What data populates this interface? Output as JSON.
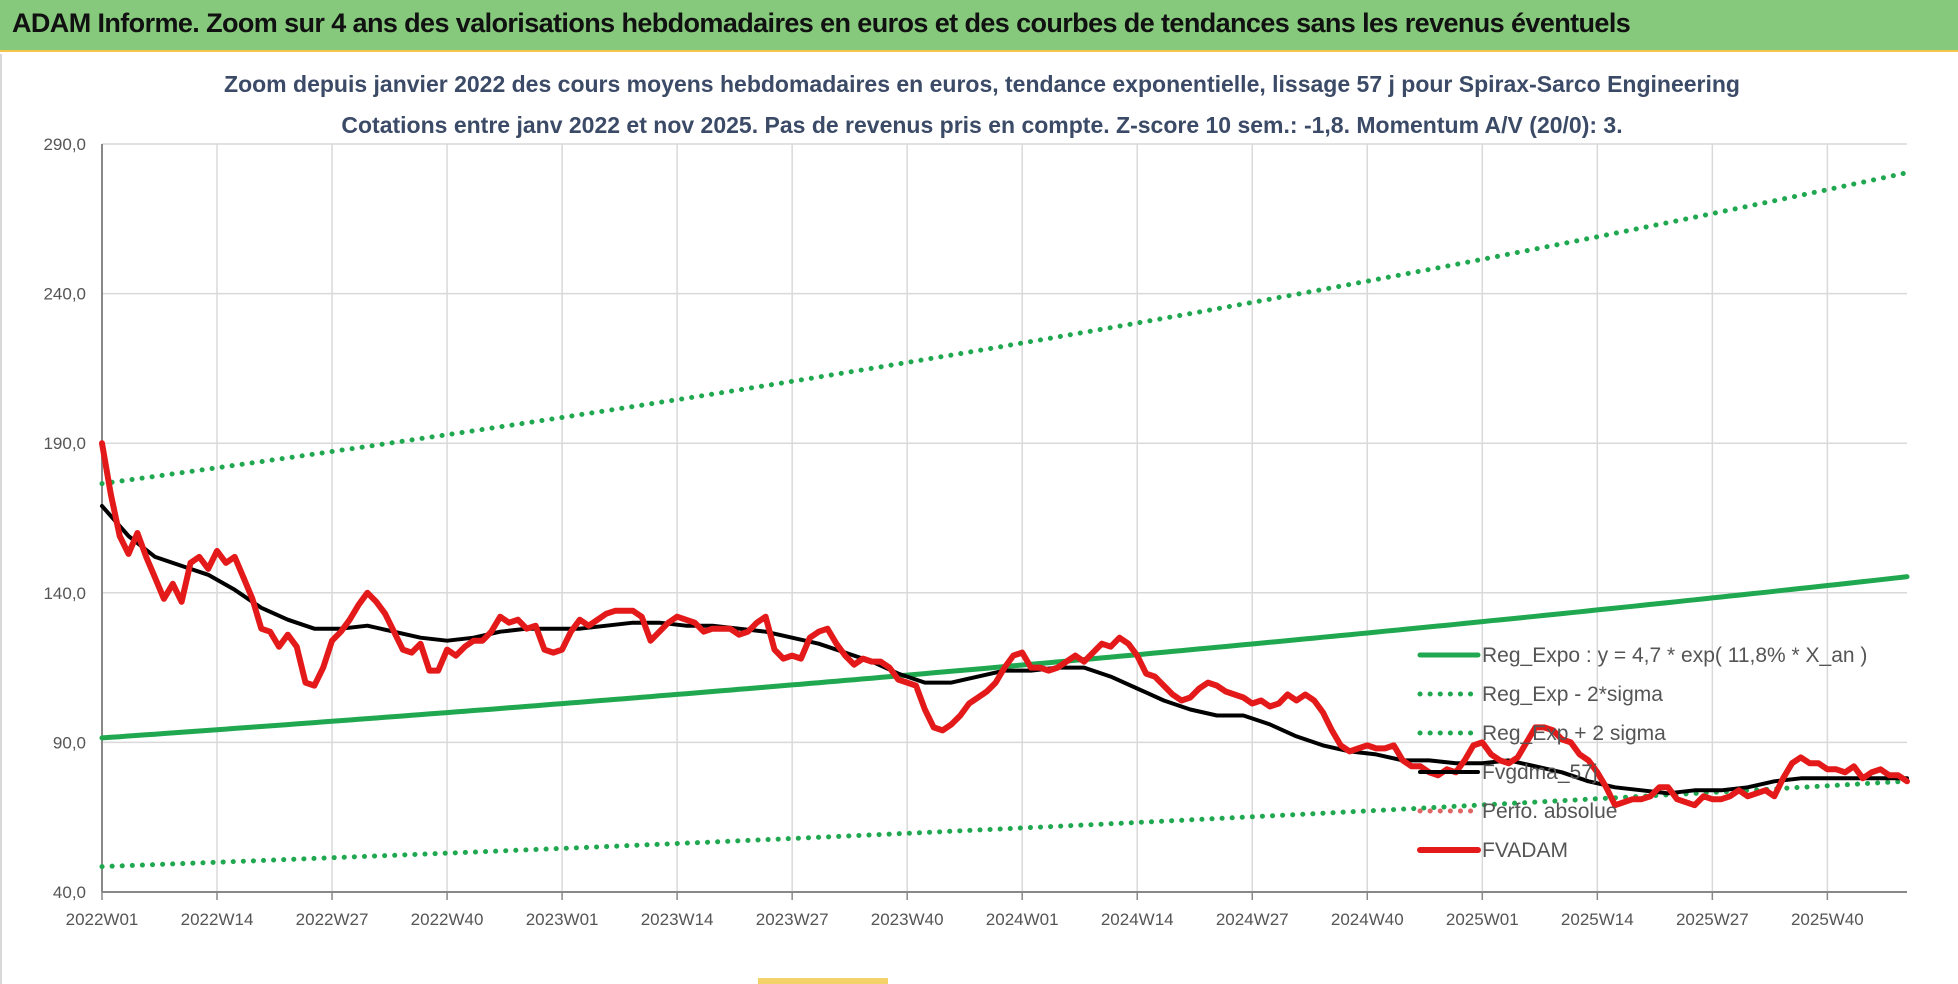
{
  "banner": {
    "title": "ADAM Informe. Zoom sur 4 ans des valorisations hebdomadaires en euros et des courbes de tendances sans les revenus éventuels",
    "color": "#86c97c"
  },
  "chart_data": {
    "type": "line",
    "title": "Zoom depuis janvier 2022 des cours moyens hebdomadaires en euros, tendance exponentielle, lissage 57 j pour Spirax-Sarco Engineering",
    "subtitle": "Cotations entre janv 2022 et nov 2025. Pas de revenus pris en compte. Z-score 10 sem.: -1,8. Momentum A/V (20/0): 3.",
    "xlabel": "",
    "ylabel": "",
    "ylim": [
      40,
      290
    ],
    "xlim": [
      0,
      204
    ],
    "yticks": [
      "40,0",
      "90,0",
      "140,0",
      "190,0",
      "240,0",
      "290,0"
    ],
    "ytick_values": [
      40,
      90,
      140,
      190,
      240,
      290
    ],
    "xticks": [
      "2022W01",
      "2022W14",
      "2022W27",
      "2022W40",
      "2023W01",
      "2023W14",
      "2023W27",
      "2023W40",
      "2024W01",
      "2024W14",
      "2024W27",
      "2024W40",
      "2025W01",
      "2025W14",
      "2025W27",
      "2025W40"
    ],
    "xtick_positions": [
      0,
      13,
      26,
      39,
      52,
      65,
      78,
      91,
      104,
      117,
      130,
      143,
      156,
      169,
      182,
      195
    ],
    "grid": true,
    "legend_position": "bottom-right",
    "series": [
      {
        "name": "Reg_Expo : y = 4,7 * exp( 11,8% *  X_an )",
        "color": "#1fa84f",
        "style": "solid",
        "kind": "exp",
        "start": 91.5,
        "growth_per_year": 0.118
      },
      {
        "name": "Reg_Exp - 2*sigma",
        "color": "#1fa84f",
        "style": "dotted",
        "kind": "exp",
        "start": 48.5,
        "growth_per_year": 0.118
      },
      {
        "name": "Reg_Exp + 2 sigma",
        "color": "#1fa84f",
        "style": "dotted",
        "kind": "exp",
        "start": 176.5,
        "growth_per_year": 0.118
      },
      {
        "name": "Fvgdma_57j",
        "color": "#000000",
        "style": "solid",
        "x": [
          0,
          3,
          6,
          9,
          12,
          15,
          18,
          21,
          24,
          27,
          30,
          33,
          36,
          39,
          42,
          45,
          48,
          51,
          54,
          57,
          60,
          63,
          66,
          69,
          72,
          75,
          78,
          81,
          84,
          87,
          90,
          93,
          96,
          99,
          102,
          105,
          108,
          111,
          114,
          117,
          120,
          123,
          126,
          129,
          132,
          135,
          138,
          141,
          144,
          147,
          150,
          153,
          156,
          159,
          162,
          165,
          168,
          171,
          174,
          177,
          180,
          183,
          186,
          189,
          192,
          195,
          198,
          201,
          204
        ],
        "y": [
          169,
          159,
          152,
          149,
          146,
          141,
          135,
          131,
          128,
          128,
          129,
          127,
          125,
          124,
          125,
          127,
          128,
          128,
          128,
          129,
          130,
          130,
          129,
          129,
          128,
          127,
          125,
          123,
          120,
          117,
          113,
          110,
          110,
          112,
          114,
          114,
          115,
          115,
          112,
          108,
          104,
          101,
          99,
          99,
          96,
          92,
          89,
          87,
          86,
          84,
          84,
          83,
          83,
          84,
          82,
          80,
          77,
          75,
          74,
          73,
          74,
          74,
          75,
          77,
          78,
          78,
          78,
          78,
          78
        ]
      },
      {
        "name": "Perfo. absolue",
        "color": "#e06666",
        "style": "dotted",
        "x": [],
        "y": []
      },
      {
        "name": "FVADAM",
        "color": "#e41a1a",
        "style": "solid",
        "x": [
          0,
          1,
          2,
          3,
          4,
          5,
          6,
          7,
          8,
          9,
          10,
          11,
          12,
          13,
          14,
          15,
          16,
          17,
          18,
          19,
          20,
          21,
          22,
          23,
          24,
          25,
          26,
          27,
          28,
          29,
          30,
          31,
          32,
          33,
          34,
          35,
          36,
          37,
          38,
          39,
          40,
          41,
          42,
          43,
          44,
          45,
          46,
          47,
          48,
          49,
          50,
          51,
          52,
          53,
          54,
          55,
          56,
          57,
          58,
          59,
          60,
          61,
          62,
          63,
          64,
          65,
          66,
          67,
          68,
          69,
          70,
          71,
          72,
          73,
          74,
          75,
          76,
          77,
          78,
          79,
          80,
          81,
          82,
          83,
          84,
          85,
          86,
          87,
          88,
          89,
          90,
          91,
          92,
          93,
          94,
          95,
          96,
          97,
          98,
          99,
          100,
          101,
          102,
          103,
          104,
          105,
          106,
          107,
          108,
          109,
          110,
          111,
          112,
          113,
          114,
          115,
          116,
          117,
          118,
          119,
          120,
          121,
          122,
          123,
          124,
          125,
          126,
          127,
          128,
          129,
          130,
          131,
          132,
          133,
          134,
          135,
          136,
          137,
          138,
          139,
          140,
          141,
          142,
          143,
          144,
          145,
          146,
          147,
          148,
          149,
          150,
          151,
          152,
          153,
          154,
          155,
          156,
          157,
          158,
          159,
          160,
          161,
          162,
          163,
          164,
          165,
          166,
          167,
          168,
          169,
          170,
          171,
          172,
          173,
          174,
          175,
          176,
          177,
          178,
          179,
          180,
          181,
          182,
          183,
          184,
          185,
          186,
          187,
          188,
          189,
          190,
          191,
          192,
          193,
          194,
          195,
          196,
          197,
          198,
          199,
          200,
          201,
          202,
          203,
          204
        ],
        "y": [
          190,
          173,
          159,
          153,
          160,
          152,
          145,
          138,
          143,
          137,
          150,
          152,
          148,
          154,
          150,
          152,
          145,
          138,
          128,
          127,
          122,
          126,
          122,
          110,
          109,
          115,
          124,
          127,
          131,
          136,
          140,
          137,
          133,
          127,
          121,
          120,
          123,
          114,
          114,
          121,
          119,
          122,
          124,
          124,
          127,
          132,
          130,
          131,
          128,
          129,
          121,
          120,
          121,
          127,
          131,
          129,
          131,
          133,
          134,
          134,
          134,
          132,
          124,
          127,
          130,
          132,
          131,
          130,
          127,
          128,
          128,
          128,
          126,
          127,
          130,
          132,
          121,
          118,
          119,
          118,
          125,
          127,
          128,
          123,
          119,
          116,
          118,
          117,
          117,
          115,
          111,
          110,
          109,
          101,
          95,
          94,
          96,
          99,
          103,
          105,
          107,
          110,
          115,
          119,
          120,
          115,
          115,
          114,
          115,
          117,
          119,
          117,
          120,
          123,
          122,
          125,
          123,
          119,
          113,
          112,
          109,
          106,
          104,
          105,
          108,
          110,
          109,
          107,
          106,
          105,
          103,
          104,
          102,
          103,
          106,
          104,
          106,
          104,
          100,
          94,
          89,
          87,
          88,
          89,
          88,
          88,
          89,
          84,
          82,
          82,
          80,
          79,
          81,
          80,
          84,
          89,
          90,
          86,
          84,
          83,
          85,
          90,
          95,
          95,
          94,
          91,
          90,
          86,
          84,
          80,
          75,
          69,
          70,
          71,
          71,
          72,
          75,
          75,
          71,
          70,
          69,
          72,
          71,
          71,
          72,
          74,
          72,
          73,
          74,
          72,
          78,
          83,
          85,
          83,
          83,
          81,
          81,
          80,
          82,
          78,
          80,
          81,
          79,
          79,
          77
        ]
      }
    ]
  }
}
